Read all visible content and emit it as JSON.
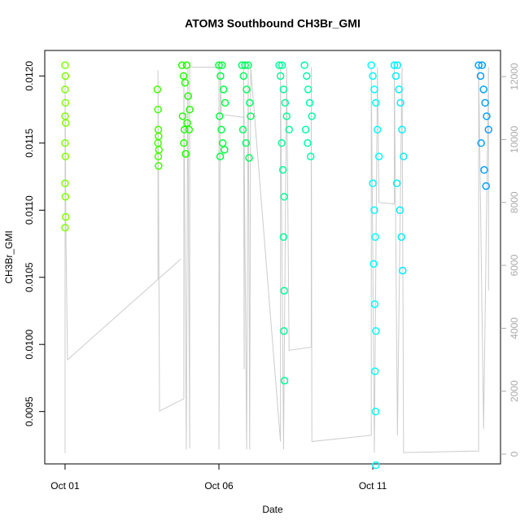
{
  "chart_data": {
    "type": "scatter",
    "title": "ATOM3 Southbound CH3Br_GMI",
    "x_label": "Date",
    "y_label": "CH3Br_GMI",
    "xlim": [
      -0.66,
      14.15
    ],
    "xticks": [
      {
        "value": 0,
        "label": "Oct 01"
      },
      {
        "value": 5,
        "label": "Oct 06"
      },
      {
        "value": 10,
        "label": "Oct 11"
      }
    ],
    "ylim": [
      0.00911,
      0.01219
    ],
    "yticks": [
      0.0095,
      {
        "value": 0.01,
        "label": "0.0100"
      },
      0.0105,
      {
        "value": 0.011,
        "label": "0.0110"
      },
      0.0115,
      {
        "value": 0.012,
        "label": "0.0120"
      }
    ],
    "y2lim": [
      -310,
      12830
    ],
    "y2ticks": [
      0,
      2000,
      4000,
      6000,
      8000,
      10000,
      12000
    ],
    "series": [
      {
        "color": "#7fff00",
        "x": [
          0,
          0.01,
          0,
          0.01,
          0,
          0.02,
          0,
          0.01,
          0,
          0.01,
          0.02,
          0
        ],
        "values": [
          0.01208,
          0.012,
          0.0119,
          0.0118,
          0.0117,
          0.01165,
          0.0115,
          0.0114,
          0.0112,
          0.0111,
          0.01095,
          0.01087
        ]
      },
      {
        "color": "#40ff00",
        "x": [
          3.0,
          3.02,
          3.03,
          3.04,
          3.02,
          3.05,
          3.03,
          3.04
        ],
        "values": [
          0.0119,
          0.01175,
          0.0116,
          0.01155,
          0.0115,
          0.01145,
          0.0114,
          0.01133
        ]
      },
      {
        "color": "#20ff00",
        "x": [
          3.8,
          3.85,
          3.9,
          3.95,
          4.0,
          4.05,
          3.82,
          3.88,
          3.97,
          4.03,
          3.86,
          3.92
        ],
        "values": [
          0.01208,
          0.012,
          0.01195,
          0.01208,
          0.01185,
          0.01175,
          0.0117,
          0.0116,
          0.01165,
          0.0116,
          0.0115,
          0.01142
        ]
      },
      {
        "color": "#00ff40",
        "x": [
          5.0,
          5.05,
          5.1,
          5.15,
          5.2,
          5.02,
          5.08,
          5.12,
          5.18,
          5.04
        ],
        "values": [
          0.01208,
          0.012,
          0.01208,
          0.0119,
          0.0118,
          0.0117,
          0.0116,
          0.0115,
          0.01145,
          0.0114
        ]
      },
      {
        "color": "#00ff60",
        "x": [
          5.75,
          5.8,
          5.85,
          5.9,
          5.95,
          6.0,
          6.03,
          5.78,
          5.88,
          5.98
        ],
        "values": [
          0.01208,
          0.012,
          0.01208,
          0.0119,
          0.01208,
          0.0118,
          0.0117,
          0.0116,
          0.0115,
          0.01139
        ]
      },
      {
        "color": "#00ff99",
        "x": [
          6.96,
          7.0,
          7.05,
          7.1,
          7.15,
          7.2,
          7.28,
          7.04,
          7.08,
          7.12,
          7.1,
          7.12,
          7.11,
          7.13
        ],
        "values": [
          0.01208,
          0.012,
          0.01208,
          0.0119,
          0.0118,
          0.0117,
          0.0116,
          0.0115,
          0.0113,
          0.0111,
          0.0108,
          0.0104,
          0.0101,
          0.00973
        ]
      },
      {
        "color": "#00ffaa",
        "x": [
          7.78,
          7.85,
          7.9,
          7.95,
          8.02,
          7.82,
          7.88,
          7.98
        ],
        "values": [
          0.01208,
          0.012,
          0.0119,
          0.0118,
          0.0117,
          0.0116,
          0.0115,
          0.0114
        ]
      },
      {
        "color": "#00ffff",
        "x": [
          9.95,
          10.0,
          10.05,
          10.1,
          10.15,
          10.2,
          10.0,
          10.05,
          10.08,
          10.03,
          10.06,
          10.1,
          10.07,
          10.09,
          10.1
        ],
        "values": [
          0.01208,
          0.012,
          0.0119,
          0.0118,
          0.0116,
          0.0114,
          0.0112,
          0.011,
          0.0108,
          0.0106,
          0.0103,
          0.0101,
          0.0098,
          0.0095,
          0.0091
        ]
      },
      {
        "color": "#00f0ff",
        "x": [
          10.7,
          10.75,
          10.8,
          10.85,
          10.9,
          10.95,
          11.0,
          10.78,
          10.88,
          10.93,
          10.97
        ],
        "values": [
          0.01208,
          0.012,
          0.01208,
          0.0119,
          0.0118,
          0.0116,
          0.0114,
          0.0112,
          0.011,
          0.0108,
          0.01055
        ]
      },
      {
        "color": "#00a0ff",
        "x": [
          13.44,
          13.5,
          13.55,
          13.6,
          13.65,
          13.7,
          13.76,
          13.52,
          13.62,
          13.68
        ],
        "values": [
          0.01208,
          0.012,
          0.01208,
          0.0119,
          0.0118,
          0.0117,
          0.0116,
          0.0115,
          0.0113,
          0.01118
        ]
      },
      {
        "axis": "y2",
        "color": "#cccccc",
        "x": [
          0,
          0,
          0.03,
          0.08,
          3.76,
          3.02,
          3.02,
          3.07,
          3.86,
          3.86,
          3.94,
          3.99,
          4.02,
          4.05,
          4.05,
          5.0,
          5.0,
          5.05,
          5.08,
          5.82,
          5.82,
          5.8,
          5.9,
          5.95,
          6.0,
          6.03,
          7.0,
          7.0,
          7.1,
          7.2,
          7.28,
          8.0,
          8.0,
          8.02,
          9.95,
          9.95,
          10.05,
          10.15,
          10.2,
          10.7,
          10.7,
          10.8,
          10.95,
          11.0,
          13.44,
          13.44,
          13.6,
          13.76,
          13.76
        ],
        "values": [
          30,
          12100,
          6700,
          3000,
          6200,
          5560,
          12200,
          1370,
          1760,
          12100,
          150,
          12300,
          5380,
          180,
          12300,
          12300,
          150,
          12300,
          10800,
          10700,
          2700,
          12300,
          150,
          12300,
          150,
          12300,
          400,
          12300,
          150,
          12300,
          3300,
          3400,
          12300,
          400,
          600,
          12300,
          50,
          12300,
          8000,
          7950,
          12300,
          600,
          12300,
          50,
          100,
          12300,
          800,
          12300,
          5200
        ]
      }
    ]
  }
}
